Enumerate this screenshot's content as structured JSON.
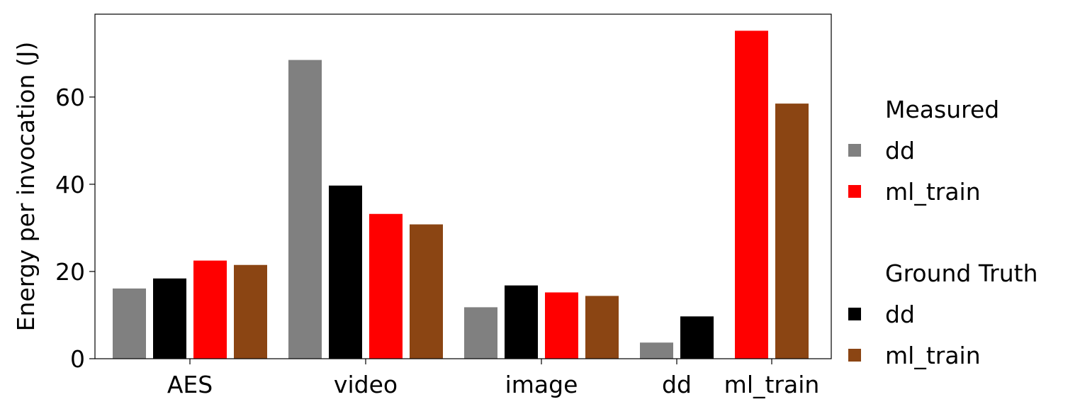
{
  "chart_data": {
    "type": "bar",
    "ylabel": "Energy per invocation (J)",
    "xlabel": "",
    "ylim": [
      0,
      79
    ],
    "yticks": [
      0,
      20,
      40,
      60
    ],
    "grid": false,
    "legend_placement": "right",
    "groups": [
      {
        "label": "AES",
        "bars": [
          {
            "series": "Measured dd",
            "value": 16.1
          },
          {
            "series": "Ground Truth dd",
            "value": 18.4
          },
          {
            "series": "Measured ml_train",
            "value": 22.5
          },
          {
            "series": "Ground Truth ml_train",
            "value": 21.5
          }
        ]
      },
      {
        "label": "video",
        "bars": [
          {
            "series": "Measured dd",
            "value": 68.5
          },
          {
            "series": "Ground Truth dd",
            "value": 39.7
          },
          {
            "series": "Measured ml_train",
            "value": 33.2
          },
          {
            "series": "Ground Truth ml_train",
            "value": 30.8
          }
        ]
      },
      {
        "label": "image",
        "bars": [
          {
            "series": "Measured dd",
            "value": 11.8
          },
          {
            "series": "Ground Truth dd",
            "value": 16.8
          },
          {
            "series": "Measured ml_train",
            "value": 15.2
          },
          {
            "series": "Ground Truth ml_train",
            "value": 14.4
          }
        ]
      },
      {
        "label": "dd",
        "bars": [
          {
            "series": "Measured dd",
            "value": 3.7
          },
          {
            "series": "Ground Truth dd",
            "value": 9.7
          }
        ]
      },
      {
        "label": "ml_train",
        "bars": [
          {
            "series": "Measured ml_train",
            "value": 75.2
          },
          {
            "series": "Ground Truth ml_train",
            "value": 58.5
          }
        ]
      }
    ],
    "series_colors": {
      "Measured dd": "#808080",
      "Ground Truth dd": "#000000",
      "Measured ml_train": "#ff0000",
      "Ground Truth ml_train": "#8b4513"
    },
    "legend": [
      {
        "heading": "Measured",
        "entries": [
          {
            "label": "dd",
            "color": "#808080"
          },
          {
            "label": "ml_train",
            "color": "#ff0000"
          }
        ]
      },
      {
        "heading": "Ground Truth",
        "entries": [
          {
            "label": "dd",
            "color": "#000000"
          },
          {
            "label": "ml_train",
            "color": "#8b4513"
          }
        ]
      }
    ]
  }
}
